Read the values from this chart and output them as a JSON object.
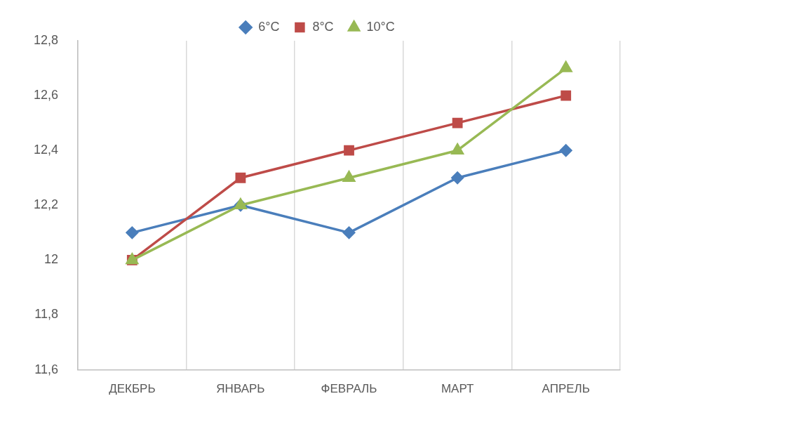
{
  "chart_data": {
    "type": "line",
    "categories": [
      "ДЕКБРЬ",
      "ЯНВАРЬ",
      "ФЕВРАЛЬ",
      "МАРТ",
      "АПРЕЛЬ"
    ],
    "series": [
      {
        "name": "6°C",
        "color": "#4a7ebb",
        "marker": "diamond",
        "values": [
          12.1,
          12.2,
          12.1,
          12.3,
          12.4
        ]
      },
      {
        "name": "8°C",
        "color": "#be4b48",
        "marker": "square",
        "values": [
          12.0,
          12.3,
          12.4,
          12.5,
          12.6
        ]
      },
      {
        "name": "10°C",
        "color": "#98b954",
        "marker": "triangle",
        "values": [
          12.0,
          12.2,
          12.3,
          12.4,
          12.7
        ]
      }
    ],
    "ylim": [
      11.6,
      12.8
    ],
    "yticks": [
      {
        "value": 11.6,
        "label": "11,6"
      },
      {
        "value": 11.8,
        "label": "11,8"
      },
      {
        "value": 12,
        "label": "12"
      },
      {
        "value": 12.2,
        "label": "12,2"
      },
      {
        "value": 12.4,
        "label": "12,4"
      },
      {
        "value": 12.6,
        "label": "12,6"
      },
      {
        "value": 12.8,
        "label": "12,8"
      }
    ],
    "grid": "x",
    "legend": "top",
    "line_style": "solid"
  }
}
